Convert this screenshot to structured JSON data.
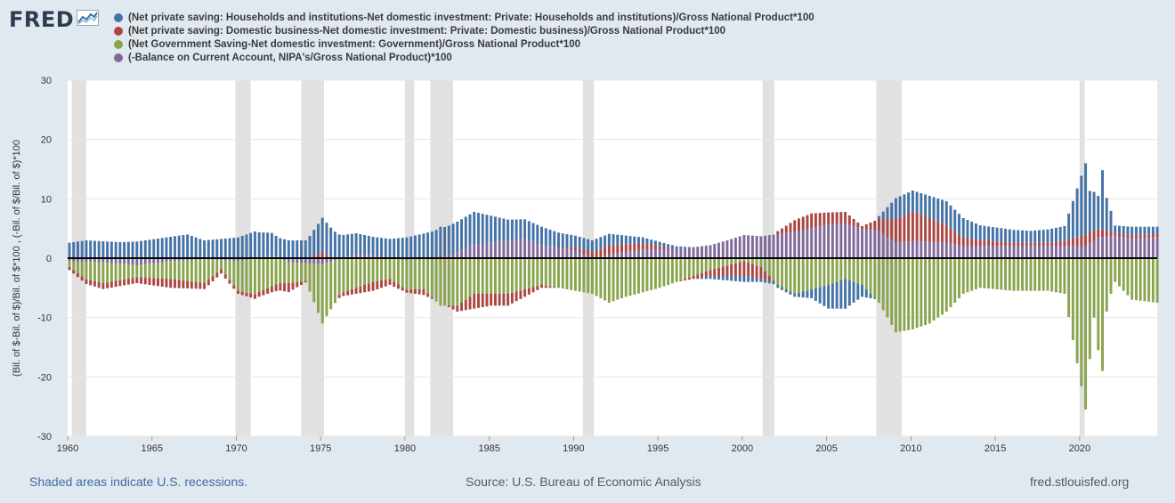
{
  "logo": {
    "text": "FRED",
    "icon": "fred-chart-icon"
  },
  "footer": {
    "recession_note": "Shaded areas indicate U.S. recessions.",
    "source": "Source: U.S. Bureau of Economic Analysis",
    "site": "fred.stlouisfed.org"
  },
  "colors": {
    "background": "#e1e9f0",
    "plot_bg": "#ffffff",
    "recession": "#e1e1e1",
    "households": "#4572a7",
    "business": "#aa4643",
    "government": "#89a54e",
    "current_account": "#80699b",
    "zero_line": "#000000"
  },
  "chart_data": {
    "type": "bar",
    "stacked": true,
    "ylabel": "(Bil. of $-Bil. of $)/Bil. of $*100 , (-Bil. of $/Bil. of $)*100",
    "xlabel": "",
    "ylim": [
      -30,
      30
    ],
    "xlim": [
      1960,
      2024.6
    ],
    "y_ticks": [
      30,
      20,
      10,
      0,
      -10,
      -20,
      -30
    ],
    "x_ticks": [
      1960,
      1965,
      1970,
      1975,
      1980,
      1985,
      1990,
      1995,
      2000,
      2005,
      2010,
      2015,
      2020
    ],
    "grid": "horizontal",
    "legend_position": "top-left",
    "frequency": "quarterly",
    "recessions": [
      [
        1960.25,
        1961.1
      ],
      [
        1969.95,
        1970.85
      ],
      [
        1973.85,
        1975.2
      ],
      [
        1980.0,
        1980.55
      ],
      [
        1981.5,
        1982.85
      ],
      [
        1990.55,
        1991.2
      ],
      [
        2001.2,
        2001.9
      ],
      [
        2007.95,
        2009.45
      ],
      [
        2020.0,
        2020.3
      ]
    ],
    "series": [
      {
        "name": "(Net private saving: Households and institutions-Net domestic investment: Private: Households and institutions)/Gross National Product*100",
        "keypoints": [
          [
            1960,
            2.6
          ],
          [
            1961,
            3.0
          ],
          [
            1963,
            2.7
          ],
          [
            1964,
            2.8
          ],
          [
            1967,
            4.0
          ],
          [
            1968,
            3.0
          ],
          [
            1970,
            3.5
          ],
          [
            1971,
            4.5
          ],
          [
            1973,
            3.0
          ],
          [
            1974,
            3.0
          ],
          [
            1975,
            5.8
          ],
          [
            1976,
            4.0
          ],
          [
            1978,
            3.0
          ],
          [
            1980,
            3.5
          ],
          [
            1982,
            4.8
          ],
          [
            1984,
            5.5
          ],
          [
            1986,
            3.5
          ],
          [
            1988,
            3.0
          ],
          [
            1990,
            2.0
          ],
          [
            1992,
            2.0
          ],
          [
            1994,
            1.0
          ],
          [
            1996,
            0.5
          ],
          [
            1998,
            -0.5
          ],
          [
            2000,
            -1.0
          ],
          [
            2001,
            -0.5
          ],
          [
            2003,
            -0.5
          ],
          [
            2004,
            -1.5
          ],
          [
            2005,
            -4.0
          ],
          [
            2006,
            -5.0
          ],
          [
            2007,
            -2.0
          ],
          [
            2008,
            0.5
          ],
          [
            2009,
            3.5
          ],
          [
            2010,
            3.5
          ],
          [
            2012,
            4.0
          ],
          [
            2014,
            2.5
          ],
          [
            2017,
            2.0
          ],
          [
            2019,
            2.5
          ],
          [
            2020.25,
            12.0
          ],
          [
            2020.5,
            7.0
          ],
          [
            2020.75,
            6.5
          ],
          [
            2021.0,
            5.5
          ],
          [
            2021.25,
            10.0
          ],
          [
            2021.5,
            5.5
          ],
          [
            2021.75,
            3.5
          ],
          [
            2022,
            1.2
          ],
          [
            2023,
            1.5
          ],
          [
            2024.5,
            1.2
          ]
        ]
      },
      {
        "name": "(Net private saving: Domestic business-Net domestic investment: Private: Domestic business)/Gross National Product*100",
        "keypoints": [
          [
            1960,
            -0.5
          ],
          [
            1962,
            -1.0
          ],
          [
            1964,
            -1.0
          ],
          [
            1966,
            -1.5
          ],
          [
            1968,
            -1.0
          ],
          [
            1970,
            -0.5
          ],
          [
            1972,
            -1.0
          ],
          [
            1973,
            -1.5
          ],
          [
            1975,
            1.0
          ],
          [
            1976,
            -0.5
          ],
          [
            1978,
            -1.5
          ],
          [
            1980,
            -0.5
          ],
          [
            1981,
            -1.0
          ],
          [
            1982,
            0.5
          ],
          [
            1984,
            -2.5
          ],
          [
            1985,
            -2.0
          ],
          [
            1986,
            -2.0
          ],
          [
            1988,
            -0.5
          ],
          [
            1990,
            0.5
          ],
          [
            1992,
            1.5
          ],
          [
            1994,
            1.0
          ],
          [
            1996,
            0.0
          ],
          [
            1998,
            -1.0
          ],
          [
            2000,
            -2.5
          ],
          [
            2001,
            -2.0
          ],
          [
            2002,
            0.5
          ],
          [
            2003,
            2.0
          ],
          [
            2004,
            2.5
          ],
          [
            2005,
            2.0
          ],
          [
            2006,
            2.0
          ],
          [
            2007,
            0.5
          ],
          [
            2008,
            2.0
          ],
          [
            2009,
            4.0
          ],
          [
            2010,
            5.0
          ],
          [
            2011,
            4.0
          ],
          [
            2012,
            3.0
          ],
          [
            2013,
            1.5
          ],
          [
            2014,
            1.0
          ],
          [
            2016,
            0.5
          ],
          [
            2018,
            0.5
          ],
          [
            2019,
            0.8
          ],
          [
            2020.25,
            2.0
          ],
          [
            2021,
            1.5
          ],
          [
            2022,
            0.5
          ],
          [
            2023,
            0.5
          ],
          [
            2024.5,
            0.5
          ]
        ]
      },
      {
        "name": "(Net Government Saving-Net domestic investment: Government)/Gross National Product*100",
        "keypoints": [
          [
            1960,
            -1.0
          ],
          [
            1961,
            -3.0
          ],
          [
            1962,
            -3.5
          ],
          [
            1964,
            -2.0
          ],
          [
            1966,
            -3.0
          ],
          [
            1968,
            -4.0
          ],
          [
            1969,
            -1.5
          ],
          [
            1970,
            -5.0
          ],
          [
            1971,
            -6.0
          ],
          [
            1973,
            -3.5
          ],
          [
            1974,
            -3.0
          ],
          [
            1975,
            -10.0
          ],
          [
            1976,
            -6.0
          ],
          [
            1978,
            -4.0
          ],
          [
            1979,
            -3.5
          ],
          [
            1980,
            -5.0
          ],
          [
            1981,
            -5.0
          ],
          [
            1982,
            -8.0
          ],
          [
            1983,
            -8.0
          ],
          [
            1984,
            -6.0
          ],
          [
            1986,
            -6.0
          ],
          [
            1988,
            -4.5
          ],
          [
            1990,
            -5.5
          ],
          [
            1991,
            -6.0
          ],
          [
            1992,
            -7.5
          ],
          [
            1993,
            -6.5
          ],
          [
            1995,
            -5.0
          ],
          [
            1997,
            -3.0
          ],
          [
            1998,
            -2.0
          ],
          [
            2000,
            -0.5
          ],
          [
            2001,
            -1.5
          ],
          [
            2002,
            -4.5
          ],
          [
            2003,
            -6.0
          ],
          [
            2005,
            -4.5
          ],
          [
            2006,
            -3.5
          ],
          [
            2007,
            -4.5
          ],
          [
            2008,
            -7.5
          ],
          [
            2009,
            -12.5
          ],
          [
            2010,
            -12.0
          ],
          [
            2011,
            -11.0
          ],
          [
            2012,
            -9.0
          ],
          [
            2013,
            -6.0
          ],
          [
            2014,
            -5.0
          ],
          [
            2016,
            -5.5
          ],
          [
            2018,
            -5.5
          ],
          [
            2019,
            -6.0
          ],
          [
            2020.25,
            -25.5
          ],
          [
            2020.5,
            -17.0
          ],
          [
            2020.75,
            -10.0
          ],
          [
            2021.0,
            -15.5
          ],
          [
            2021.25,
            -19.0
          ],
          [
            2021.5,
            -9.0
          ],
          [
            2021.75,
            -6.0
          ],
          [
            2022,
            -4.0
          ],
          [
            2023,
            -7.0
          ],
          [
            2024.5,
            -7.5
          ]
        ]
      },
      {
        "name": "(-Balance on Current Account, NIPA's/Gross National Product)*100",
        "keypoints": [
          [
            1960,
            -0.5
          ],
          [
            1962,
            -0.7
          ],
          [
            1964,
            -1.2
          ],
          [
            1966,
            -0.5
          ],
          [
            1968,
            -0.2
          ],
          [
            1970,
            -0.5
          ],
          [
            1971,
            -0.1
          ],
          [
            1972,
            0.5
          ],
          [
            1973,
            -0.7
          ],
          [
            1975,
            -1.0
          ],
          [
            1976,
            -0.2
          ],
          [
            1977,
            0.7
          ],
          [
            1978,
            0.6
          ],
          [
            1979,
            0.0
          ],
          [
            1980,
            -0.3
          ],
          [
            1981,
            -0.2
          ],
          [
            1982,
            0.0
          ],
          [
            1983,
            1.0
          ],
          [
            1984,
            2.3
          ],
          [
            1986,
            3.0
          ],
          [
            1987,
            3.3
          ],
          [
            1988,
            2.3
          ],
          [
            1990,
            1.3
          ],
          [
            1991,
            0.0
          ],
          [
            1992,
            0.6
          ],
          [
            1994,
            1.5
          ],
          [
            1996,
            1.5
          ],
          [
            1998,
            2.2
          ],
          [
            1999,
            3.0
          ],
          [
            2000,
            3.9
          ],
          [
            2001,
            3.7
          ],
          [
            2003,
            4.4
          ],
          [
            2005,
            5.7
          ],
          [
            2006,
            5.8
          ],
          [
            2007,
            4.9
          ],
          [
            2008,
            4.6
          ],
          [
            2009,
            2.6
          ],
          [
            2010,
            2.9
          ],
          [
            2012,
            2.6
          ],
          [
            2013,
            2.0
          ],
          [
            2016,
            2.1
          ],
          [
            2019,
            2.1
          ],
          [
            2020.25,
            2.0
          ],
          [
            2021,
            3.5
          ],
          [
            2022,
            3.8
          ],
          [
            2023,
            3.3
          ],
          [
            2024.5,
            3.6
          ]
        ]
      }
    ]
  }
}
